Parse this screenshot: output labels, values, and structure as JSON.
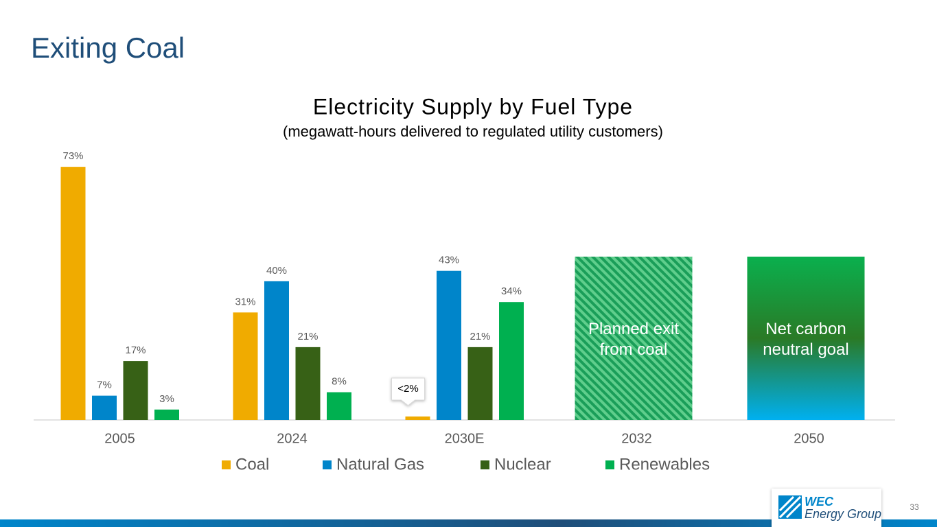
{
  "slide": {
    "title": "Exiting Coal",
    "page_number": "33",
    "logo_line1": "WEC",
    "logo_line2": "Energy Group"
  },
  "chart_data": {
    "type": "bar",
    "title": "Electricity Supply by Fuel Type",
    "subtitle": "(megawatt-hours delivered to regulated utility customers)",
    "categories": [
      "2005",
      "2024",
      "2030E",
      "2032",
      "2050"
    ],
    "series": [
      {
        "name": "Coal",
        "color": "#f0ab00",
        "values": [
          73,
          31,
          1,
          null,
          null
        ],
        "value_labels": [
          "73%",
          "31%",
          "<2%",
          null,
          null
        ]
      },
      {
        "name": "Natural Gas",
        "color": "#0085ca",
        "values": [
          7,
          40,
          43,
          null,
          null
        ],
        "value_labels": [
          "7%",
          "40%",
          "43%",
          null,
          null
        ]
      },
      {
        "name": "Nuclear",
        "color": "#376116",
        "values": [
          17,
          21,
          21,
          null,
          null
        ],
        "value_labels": [
          "17%",
          "21%",
          "21%",
          null,
          null
        ]
      },
      {
        "name": "Renewables",
        "color": "#00b050",
        "values": [
          3,
          8,
          34,
          null,
          null
        ],
        "value_labels": [
          "3%",
          "8%",
          "34%",
          null,
          null
        ]
      }
    ],
    "annotations": [
      "Planned exit from coal",
      "Net carbon neutral goal"
    ],
    "ylim": [
      0,
      75
    ],
    "legend": "bottom"
  }
}
